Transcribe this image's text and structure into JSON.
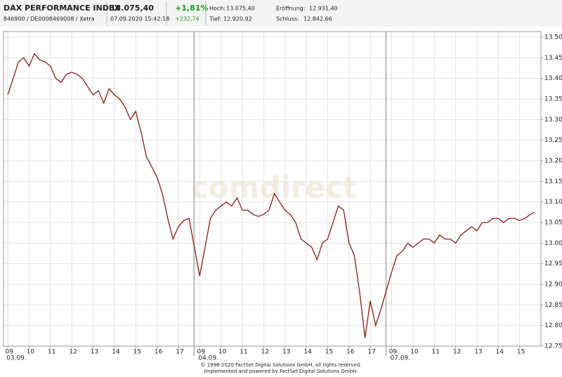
{
  "header": {
    "title": "DAX PERFORMANCE INDEX",
    "ids": "846900 / DE0008469008 / Xetra",
    "price": "13.075,40",
    "timestamp": "07.09.2020 15:42:18",
    "change_pct": "+1,81%",
    "change_abs": "+232,74",
    "high_label": "Hoch:",
    "high": "13.075,40",
    "low_label": "Tief:",
    "low": "12.920,92",
    "open_label": "Eröffnung:",
    "open": "12.931,40",
    "close_label": "Schluss:",
    "close": "12.842,66"
  },
  "chart_data": {
    "type": "line",
    "watermark": "comdirect",
    "xlim": [
      -0.2,
      25
    ],
    "ylim": [
      12750,
      13500
    ],
    "grid": true,
    "xticks": [
      {
        "value": 0,
        "label": "09"
      },
      {
        "value": 1,
        "label": "10"
      },
      {
        "value": 2,
        "label": "11"
      },
      {
        "value": 3,
        "label": "12"
      },
      {
        "value": 4,
        "label": "13"
      },
      {
        "value": 5,
        "label": "14"
      },
      {
        "value": 6,
        "label": "15"
      },
      {
        "value": 7,
        "label": "16"
      },
      {
        "value": 8,
        "label": "17"
      },
      {
        "value": 9,
        "label": "09"
      },
      {
        "value": 10,
        "label": "10"
      },
      {
        "value": 11,
        "label": "11"
      },
      {
        "value": 12,
        "label": "12"
      },
      {
        "value": 13,
        "label": "13"
      },
      {
        "value": 14,
        "label": "14"
      },
      {
        "value": 15,
        "label": "15"
      },
      {
        "value": 16,
        "label": "16"
      },
      {
        "value": 17,
        "label": "17"
      },
      {
        "value": 18,
        "label": "09"
      },
      {
        "value": 19,
        "label": "10"
      },
      {
        "value": 20,
        "label": "11"
      },
      {
        "value": 21,
        "label": "12"
      },
      {
        "value": 22,
        "label": "13"
      },
      {
        "value": 23,
        "label": "14"
      },
      {
        "value": 24,
        "label": "15"
      }
    ],
    "day_labels": [
      {
        "value": 0,
        "label": "03.09."
      },
      {
        "value": 9,
        "label": "04.09."
      },
      {
        "value": 18,
        "label": "07.09."
      }
    ],
    "yticks": [
      {
        "value": 12750,
        "label": "12.750"
      },
      {
        "value": 12800,
        "label": "12.800"
      },
      {
        "value": 12850,
        "label": "12.850"
      },
      {
        "value": 12900,
        "label": "12.900"
      },
      {
        "value": 12950,
        "label": "12.950"
      },
      {
        "value": 13000,
        "label": "13.000"
      },
      {
        "value": 13050,
        "label": "13.050"
      },
      {
        "value": 13100,
        "label": "13.100"
      },
      {
        "value": 13150,
        "label": "13.150"
      },
      {
        "value": 13200,
        "label": "13.200"
      },
      {
        "value": 13250,
        "label": "13.250"
      },
      {
        "value": 13300,
        "label": "13.300"
      },
      {
        "value": 13350,
        "label": "13.350"
      },
      {
        "value": 13400,
        "label": "13.400"
      },
      {
        "value": 13450,
        "label": "13.450"
      },
      {
        "value": 13500,
        "label": "13.500"
      }
    ],
    "series": [
      {
        "color": "#8b1a1a",
        "x": [
          0,
          0.25,
          0.5,
          0.75,
          1,
          1.25,
          1.5,
          1.75,
          2,
          2.25,
          2.5,
          2.75,
          3,
          3.25,
          3.5,
          4,
          4.25,
          4.5,
          4.75,
          5,
          5.25,
          5.5,
          5.75,
          6,
          6.25,
          6.5,
          7,
          7.25,
          7.5,
          7.75,
          8,
          8.25,
          8.5,
          9,
          9.25,
          9.5,
          9.75,
          10,
          10.25,
          10.5,
          10.75,
          11,
          11.25,
          11.5,
          11.75,
          12,
          12.25,
          12.5,
          12.75,
          13,
          13.25,
          13.5,
          13.75,
          14,
          14.25,
          14.5,
          14.75,
          15,
          15.25,
          15.5,
          15.75,
          16,
          16.25,
          16.5,
          16.75,
          17,
          17.25,
          17.5,
          18,
          18.25,
          18.5,
          18.75,
          19,
          19.25,
          19.5,
          19.75,
          20,
          20.25,
          20.5,
          20.75,
          21,
          21.25,
          21.5,
          21.75,
          22,
          22.25,
          22.5,
          22.75,
          23,
          23.25,
          23.5,
          23.75,
          24,
          24.25,
          24.5,
          24.7
        ],
        "values": [
          13360,
          13400,
          13440,
          13450,
          13430,
          13460,
          13445,
          13440,
          13430,
          13400,
          13390,
          13410,
          13415,
          13410,
          13400,
          13360,
          13370,
          13340,
          13375,
          13360,
          13350,
          13330,
          13300,
          13320,
          13270,
          13210,
          13160,
          13120,
          13060,
          13010,
          13040,
          13055,
          13060,
          12920,
          12990,
          13060,
          13080,
          13090,
          13100,
          13090,
          13110,
          13080,
          13080,
          13070,
          13065,
          13070,
          13080,
          13120,
          13100,
          13080,
          13070,
          13050,
          13010,
          13000,
          12990,
          12960,
          13000,
          13010,
          13050,
          13090,
          13080,
          13000,
          12970,
          12880,
          12770,
          12860,
          12800,
          12840,
          12930,
          12970,
          12980,
          13000,
          12990,
          13000,
          13010,
          13010,
          13000,
          13020,
          13010,
          13010,
          13000,
          13020,
          13030,
          13040,
          13030,
          13050,
          13050,
          13060,
          13060,
          13050,
          13060,
          13060,
          13055,
          13060,
          13070,
          13075
        ]
      }
    ]
  },
  "footer": {
    "line1": "© 1996-2020 FactSet Digital Solutions GmbH, all rights reserved.",
    "line2": "Implemented and powered by FactSet Digital Solutions GmbH."
  }
}
